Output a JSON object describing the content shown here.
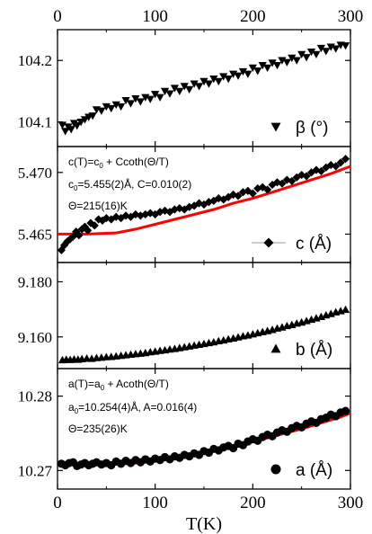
{
  "colors": {
    "fit": "#ff0000",
    "marker": "#000000",
    "axis": "#000000",
    "legend_line": "#999999"
  },
  "chart_data": [
    {
      "type": "scatter",
      "id": "beta",
      "xlim": [
        0,
        300
      ],
      "ylim": [
        104.06,
        104.25
      ],
      "yticks": [
        104.1,
        104.2
      ],
      "ytick_labels": [
        "104.1",
        "104.2"
      ],
      "xticks": [
        0,
        100,
        200,
        300
      ],
      "xtick_labels": [
        "0",
        "100",
        "200",
        "300"
      ],
      "grid": false,
      "legend": {
        "label": "β (°)",
        "marker": "triangle-down",
        "placement": "bottom-right"
      },
      "series": [
        {
          "name": "β (°)",
          "marker": "triangle-down",
          "x": [
            5,
            8,
            11,
            14,
            17,
            20,
            24,
            28,
            32,
            36,
            40,
            45,
            50,
            55,
            60,
            65,
            70,
            75,
            80,
            85,
            90,
            95,
            100,
            105,
            110,
            115,
            120,
            125,
            130,
            135,
            140,
            145,
            150,
            155,
            160,
            165,
            170,
            175,
            180,
            185,
            190,
            195,
            200,
            205,
            210,
            215,
            220,
            225,
            230,
            235,
            240,
            245,
            250,
            255,
            260,
            265,
            270,
            275,
            280,
            285,
            290,
            295
          ],
          "y": [
            104.095,
            104.085,
            104.092,
            104.088,
            104.098,
            104.094,
            104.1,
            104.104,
            104.108,
            104.11,
            104.12,
            104.118,
            104.125,
            104.122,
            104.128,
            104.125,
            104.135,
            104.13,
            104.138,
            104.133,
            104.14,
            104.137,
            104.145,
            104.14,
            104.15,
            104.146,
            104.155,
            104.15,
            104.158,
            104.153,
            104.162,
            104.158,
            104.166,
            104.162,
            104.17,
            104.166,
            104.174,
            104.17,
            104.178,
            104.175,
            104.182,
            104.178,
            104.188,
            104.183,
            104.192,
            104.188,
            104.196,
            104.192,
            104.2,
            104.197,
            104.204,
            104.2,
            104.21,
            104.205,
            104.214,
            104.21,
            104.22,
            104.215,
            104.222,
            104.219,
            104.225,
            104.224
          ]
        }
      ]
    },
    {
      "type": "scatter",
      "id": "c",
      "xlim": [
        0,
        300
      ],
      "ylim": [
        5.4627,
        5.4721
      ],
      "yticks": [
        5.465,
        5.47
      ],
      "ytick_labels": [
        "5.465",
        "5.470"
      ],
      "xticks": [
        0,
        100,
        200,
        300
      ],
      "grid": false,
      "legend": {
        "label": "c (Å)",
        "marker": "diamond",
        "placement": "bottom-right"
      },
      "annotations": [
        "c(T)=c",
        "0",
        " + Ccoth(Θ/T)",
        "c",
        "0",
        "=5.455(2)Å, C=0.010(2)",
        "Θ=215(16)K"
      ],
      "series": [
        {
          "name": "c (Å)",
          "marker": "diamond",
          "x": [
            4,
            7,
            10,
            13,
            16,
            19,
            22,
            25,
            28,
            31,
            34,
            38,
            42,
            46,
            50,
            55,
            60,
            65,
            70,
            75,
            80,
            85,
            90,
            95,
            100,
            105,
            110,
            115,
            120,
            125,
            130,
            135,
            140,
            145,
            150,
            155,
            160,
            165,
            170,
            175,
            180,
            185,
            190,
            195,
            200,
            205,
            210,
            215,
            220,
            225,
            230,
            235,
            240,
            245,
            250,
            255,
            260,
            265,
            270,
            275,
            280,
            285,
            290,
            295
          ],
          "y": [
            5.4637,
            5.4641,
            5.4644,
            5.4646,
            5.4648,
            5.4652,
            5.4649,
            5.4654,
            5.4656,
            5.4653,
            5.4659,
            5.4657,
            5.4662,
            5.4661,
            5.4663,
            5.4662,
            5.4664,
            5.4663,
            5.4665,
            5.4664,
            5.4666,
            5.4665,
            5.4666,
            5.4667,
            5.4666,
            5.4668,
            5.4669,
            5.4668,
            5.467,
            5.4671,
            5.467,
            5.4672,
            5.4673,
            5.4675,
            5.4674,
            5.4676,
            5.4677,
            5.4679,
            5.4678,
            5.468,
            5.4682,
            5.4681,
            5.4684,
            5.4685,
            5.4683,
            5.4687,
            5.4688,
            5.4686,
            5.469,
            5.4692,
            5.4691,
            5.4694,
            5.4693,
            5.4696,
            5.4698,
            5.4697,
            5.47,
            5.4702,
            5.4701,
            5.4704,
            5.4706,
            5.4705,
            5.4708,
            5.4711
          ]
        },
        {
          "name": "",
          "kind": "fit-line",
          "x": [
            0,
            30,
            60,
            80,
            100,
            120,
            140,
            160,
            180,
            200,
            220,
            240,
            260,
            280,
            300
          ],
          "y": [
            5.465,
            5.465,
            5.4651,
            5.4654,
            5.4658,
            5.4662,
            5.4666,
            5.467,
            5.4675,
            5.4679,
            5.4684,
            5.4689,
            5.4694,
            5.4699,
            5.4705
          ]
        }
      ]
    },
    {
      "type": "scatter",
      "id": "b",
      "xlim": [
        0,
        300
      ],
      "ylim": [
        9.1485,
        9.187
      ],
      "yticks": [
        9.16,
        9.18
      ],
      "ytick_labels": [
        "9.160",
        "9.180"
      ],
      "xticks": [
        0,
        100,
        200,
        300
      ],
      "grid": false,
      "legend": {
        "label": "b (Å)",
        "marker": "triangle-up",
        "placement": "bottom-right"
      },
      "series": [
        {
          "name": "b (Å)",
          "marker": "triangle-up",
          "x": [
            5,
            9,
            13,
            17,
            21,
            25,
            30,
            35,
            40,
            45,
            50,
            55,
            60,
            65,
            70,
            75,
            80,
            85,
            90,
            95,
            100,
            105,
            110,
            115,
            120,
            125,
            130,
            135,
            140,
            145,
            150,
            155,
            160,
            165,
            170,
            175,
            180,
            185,
            190,
            195,
            200,
            205,
            210,
            215,
            220,
            225,
            230,
            235,
            240,
            245,
            250,
            255,
            260,
            265,
            270,
            275,
            280,
            285,
            290,
            295
          ],
          "y": [
            9.1516,
            9.1518,
            9.1517,
            9.1519,
            9.1518,
            9.152,
            9.1522,
            9.1521,
            9.1524,
            9.1525,
            9.1527,
            9.1528,
            9.153,
            9.1532,
            9.1534,
            9.1536,
            9.1538,
            9.154,
            9.1542,
            9.1545,
            9.1547,
            9.155,
            9.1552,
            9.1555,
            9.1557,
            9.156,
            9.1563,
            9.1566,
            9.1569,
            9.1572,
            9.1575,
            9.1578,
            9.1581,
            9.1585,
            9.1588,
            9.1592,
            9.1595,
            9.1599,
            9.1603,
            9.1606,
            9.161,
            9.1614,
            9.1618,
            9.1622,
            9.1626,
            9.1631,
            9.1635,
            9.164,
            9.1644,
            9.1649,
            9.1653,
            9.1658,
            9.1663,
            9.1668,
            9.1673,
            9.1679,
            9.1684,
            9.169,
            9.1694,
            9.1699
          ]
        }
      ]
    },
    {
      "type": "scatter",
      "id": "a",
      "xlim": [
        0,
        300
      ],
      "ylim": [
        10.2675,
        10.2837
      ],
      "yticks": [
        10.27,
        10.28
      ],
      "ytick_labels": [
        "10.27",
        "10.28"
      ],
      "xticks": [
        0,
        100,
        200,
        300
      ],
      "xtick_labels": [
        "0",
        "100",
        "200",
        "300"
      ],
      "xlabel": "T(K)",
      "grid": false,
      "legend": {
        "label": "a (Å)",
        "marker": "circle",
        "placement": "bottom-right"
      },
      "annotations": [
        "a(T)=a",
        "0",
        " + Acoth(Θ/T)",
        "a",
        "0",
        "=10.254(4)Å, A=0.016(4)",
        "Θ=235(26)K"
      ],
      "series": [
        {
          "name": "a (Å)",
          "marker": "circle",
          "x": [
            4,
            8,
            12,
            16,
            20,
            24,
            28,
            32,
            36,
            40,
            45,
            50,
            55,
            60,
            65,
            70,
            75,
            80,
            85,
            90,
            95,
            100,
            105,
            110,
            115,
            120,
            125,
            130,
            135,
            140,
            145,
            150,
            155,
            160,
            165,
            170,
            175,
            180,
            185,
            190,
            195,
            200,
            205,
            210,
            215,
            220,
            225,
            230,
            235,
            240,
            245,
            250,
            255,
            260,
            265,
            270,
            275,
            280,
            285,
            290,
            295
          ],
          "y": [
            10.2709,
            10.2707,
            10.271,
            10.2711,
            10.2706,
            10.2708,
            10.271,
            10.2707,
            10.2709,
            10.2711,
            10.2708,
            10.271,
            10.2707,
            10.2712,
            10.2709,
            10.2713,
            10.271,
            10.2714,
            10.2711,
            10.2715,
            10.2712,
            10.2716,
            10.2714,
            10.2718,
            10.2715,
            10.2719,
            10.2717,
            10.2721,
            10.2719,
            10.2723,
            10.2721,
            10.2726,
            10.2724,
            10.2729,
            10.2727,
            10.2731,
            10.2733,
            10.273,
            10.2736,
            10.2734,
            10.2739,
            10.2742,
            10.274,
            10.2745,
            10.2748,
            10.2746,
            10.2751,
            10.2754,
            10.2752,
            10.2757,
            10.276,
            10.2758,
            10.2763,
            10.2766,
            10.2764,
            10.2769,
            10.2771,
            10.2775,
            10.2773,
            10.2778,
            10.278
          ]
        },
        {
          "name": "",
          "kind": "fit-line",
          "x": [
            30,
            50,
            70,
            90,
            110,
            130,
            150,
            170,
            190,
            210,
            230,
            250,
            270,
            290,
            300
          ],
          "y": [
            10.2709,
            10.2708,
            10.2709,
            10.2711,
            10.2714,
            10.2718,
            10.2723,
            10.2729,
            10.2735,
            10.2742,
            10.2749,
            10.2756,
            10.2764,
            10.2772,
            10.2777
          ]
        }
      ]
    }
  ]
}
